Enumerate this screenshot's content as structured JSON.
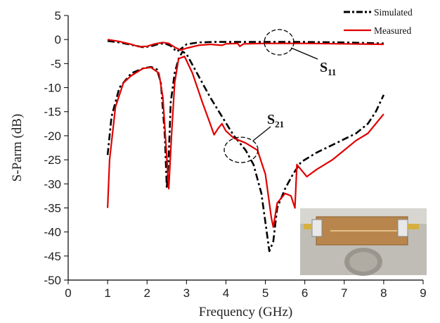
{
  "chart_data": {
    "type": "line",
    "title": "",
    "xlabel": "Frequency (GHz)",
    "ylabel": "S-Parm (dB)",
    "xlim": [
      0,
      9
    ],
    "ylim": [
      -50,
      5
    ],
    "xticks": [
      0,
      1,
      2,
      3,
      4,
      5,
      6,
      7,
      8,
      9
    ],
    "yticks": [
      5,
      0,
      -5,
      -10,
      -15,
      -20,
      -25,
      -30,
      -35,
      -40,
      -45,
      -50
    ],
    "grid": false,
    "legend_position": "top-right",
    "annotations": [
      {
        "text": "S",
        "sub": "11"
      },
      {
        "text": "S",
        "sub": "21"
      }
    ],
    "series": [
      {
        "name": "Simulated",
        "color": "#000000",
        "style": "dash-dot",
        "curves": [
          [
            [
              1.0,
              -0.3
            ],
            [
              1.3,
              -0.6
            ],
            [
              1.6,
              -1.1
            ],
            [
              1.9,
              -1.6
            ],
            [
              2.1,
              -1.4
            ],
            [
              2.3,
              -0.9
            ],
            [
              2.45,
              -0.8
            ],
            [
              2.6,
              -1.3
            ],
            [
              2.75,
              -2.5
            ],
            [
              2.85,
              -2.0
            ],
            [
              3.0,
              -1.0
            ],
            [
              3.3,
              -0.6
            ],
            [
              3.7,
              -0.5
            ],
            [
              4.2,
              -0.5
            ],
            [
              5.0,
              -0.5
            ],
            [
              6.0,
              -0.5
            ],
            [
              7.0,
              -0.6
            ],
            [
              8.0,
              -0.8
            ]
          ],
          [
            [
              1.0,
              -24
            ],
            [
              1.1,
              -16
            ],
            [
              1.3,
              -10
            ],
            [
              1.6,
              -7
            ],
            [
              1.9,
              -6
            ],
            [
              2.1,
              -5.7
            ],
            [
              2.25,
              -6.2
            ],
            [
              2.35,
              -9
            ],
            [
              2.45,
              -20
            ],
            [
              2.5,
              -31
            ],
            [
              2.55,
              -24
            ],
            [
              2.6,
              -13
            ],
            [
              2.7,
              -7
            ],
            [
              2.8,
              -4
            ],
            [
              2.9,
              -2.5
            ],
            [
              3.0,
              -3
            ],
            [
              3.2,
              -6
            ],
            [
              3.4,
              -9
            ],
            [
              3.6,
              -12
            ],
            [
              3.9,
              -16
            ],
            [
              4.2,
              -20
            ],
            [
              4.5,
              -23
            ],
            [
              4.7,
              -26
            ],
            [
              4.9,
              -32
            ],
            [
              5.0,
              -38
            ],
            [
              5.1,
              -44
            ],
            [
              5.2,
              -42
            ],
            [
              5.3,
              -35
            ],
            [
              5.5,
              -31
            ],
            [
              5.7,
              -28
            ],
            [
              5.9,
              -25.5
            ],
            [
              6.3,
              -23.5
            ],
            [
              6.8,
              -21.5
            ],
            [
              7.3,
              -19.5
            ],
            [
              7.6,
              -17.5
            ],
            [
              7.8,
              -15
            ],
            [
              8.0,
              -11.5
            ]
          ]
        ]
      },
      {
        "name": "Measured",
        "color": "#e00000",
        "style": "solid",
        "curves": [
          [
            [
              1.0,
              0.0
            ],
            [
              1.3,
              -0.4
            ],
            [
              1.6,
              -1.0
            ],
            [
              1.8,
              -1.5
            ],
            [
              2.0,
              -1.4
            ],
            [
              2.2,
              -0.9
            ],
            [
              2.4,
              -0.6
            ],
            [
              2.55,
              -0.8
            ],
            [
              2.7,
              -1.6
            ],
            [
              2.85,
              -2.2
            ],
            [
              3.0,
              -1.8
            ],
            [
              3.3,
              -1.2
            ],
            [
              3.6,
              -1.0
            ],
            [
              3.9,
              -1.2
            ],
            [
              4.0,
              -0.9
            ],
            [
              4.3,
              -0.8
            ],
            [
              4.35,
              -1.4
            ],
            [
              4.45,
              -0.9
            ],
            [
              5.0,
              -0.8
            ],
            [
              6.0,
              -0.8
            ],
            [
              7.0,
              -0.9
            ],
            [
              8.0,
              -1.0
            ]
          ],
          [
            [
              1.0,
              -35
            ],
            [
              1.05,
              -25
            ],
            [
              1.2,
              -14
            ],
            [
              1.4,
              -9
            ],
            [
              1.6,
              -7.5
            ],
            [
              1.9,
              -6
            ],
            [
              2.1,
              -5.8
            ],
            [
              2.3,
              -7
            ],
            [
              2.4,
              -12
            ],
            [
              2.48,
              -22
            ],
            [
              2.55,
              -31
            ],
            [
              2.62,
              -20
            ],
            [
              2.7,
              -9
            ],
            [
              2.8,
              -4
            ],
            [
              2.95,
              -3.5
            ],
            [
              3.15,
              -7
            ],
            [
              3.4,
              -13
            ],
            [
              3.6,
              -17.5
            ],
            [
              3.7,
              -19.8
            ],
            [
              3.8,
              -18.5
            ],
            [
              3.9,
              -17.5
            ],
            [
              4.0,
              -19
            ],
            [
              4.2,
              -20.5
            ],
            [
              4.5,
              -21.5
            ],
            [
              4.8,
              -23
            ],
            [
              5.0,
              -28
            ],
            [
              5.15,
              -37
            ],
            [
              5.2,
              -39
            ],
            [
              5.3,
              -34
            ],
            [
              5.5,
              -32
            ],
            [
              5.65,
              -32.5
            ],
            [
              5.75,
              -35
            ],
            [
              5.8,
              -26
            ],
            [
              5.9,
              -27
            ],
            [
              6.05,
              -28.5
            ],
            [
              6.3,
              -27
            ],
            [
              6.7,
              -25
            ],
            [
              7.0,
              -23
            ],
            [
              7.3,
              -21
            ],
            [
              7.6,
              -19.5
            ],
            [
              8.0,
              -15.5
            ]
          ]
        ]
      }
    ]
  }
}
